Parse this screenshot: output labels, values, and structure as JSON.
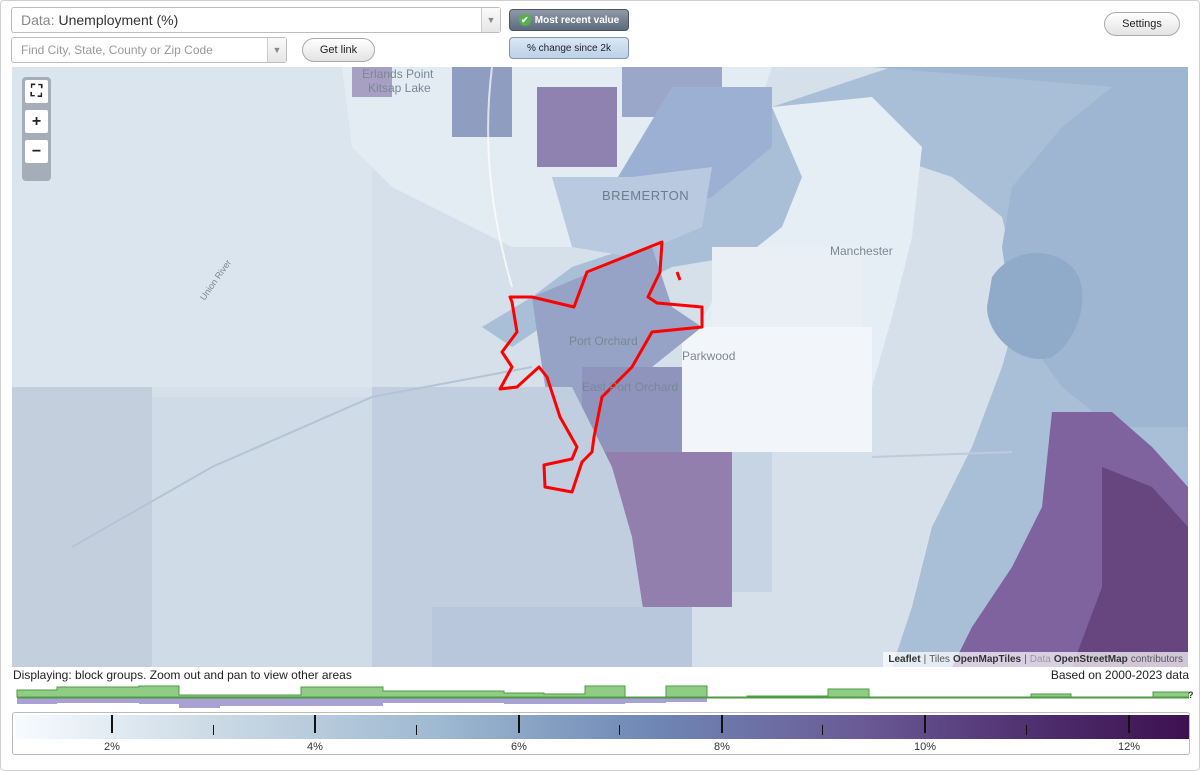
{
  "data_selector": {
    "prefix": "Data:",
    "value": "Unemployment (%)"
  },
  "search": {
    "placeholder": "Find City, State, County or Zip Code"
  },
  "buttons": {
    "get_link": "Get link",
    "settings": "Settings"
  },
  "toggles": {
    "most_recent": "Most recent value",
    "pct_change": "% change since 2k"
  },
  "zoom": {
    "fullscreen": "⛶",
    "zoom_in": "+",
    "zoom_out": "−"
  },
  "map": {
    "labels": {
      "erlands_point": "Erlands Point",
      "kitsap_lake": "Kitsap Lake",
      "bremerton": "BREMERTON",
      "manchester": "Manchester",
      "port_orchard": "Port Orchard",
      "east_port_orchard": "East Port Orchard",
      "parkwood": "Parkwood",
      "union_river": "Union River"
    },
    "attribution": {
      "leaflet": "Leaflet",
      "sep": "|",
      "tiles": "Tiles",
      "omt": "OpenMapTiles",
      "data": "Data",
      "osm": "OpenStreetMap",
      "contributors": "contributors"
    },
    "highlight_color": "#ff0000"
  },
  "footer": {
    "displaying": "Displaying: block groups. Zoom out and pan to view other areas",
    "based_on": "Based on 2000-2023 data",
    "qmark": "?"
  },
  "legend": {
    "labels": [
      "2%",
      "4%",
      "6%",
      "8%",
      "10%",
      "12%"
    ],
    "colors": {
      "low": "#f7fbff",
      "mid": "#6f88b5",
      "high": "#3d1150"
    }
  }
}
